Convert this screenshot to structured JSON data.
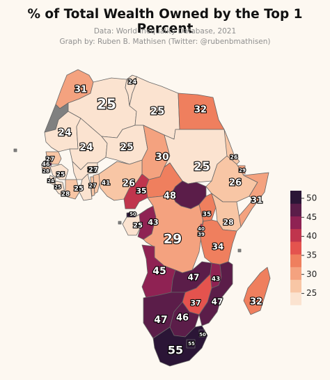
{
  "header": {
    "title": "% of Total Wealth Owned by the Top 1 Percent",
    "source": "Data: World Inequality Database, 2021",
    "credit": "Graph by: Ruben B. Mathisen (Twitter: @rubenbmathisen)"
  },
  "legend": {
    "ticks": [
      "50",
      "45",
      "40",
      "35",
      "30",
      "25"
    ],
    "range": [
      22,
      52
    ],
    "tick_values": [
      50,
      45,
      40,
      35,
      30,
      25
    ]
  },
  "colors": {
    "background": "#fdf8f1",
    "no_data": "#808080",
    "scale": [
      "#fbe3d0",
      "#f8c6a5",
      "#f4a27f",
      "#ef7f5e",
      "#e4534e",
      "#c0354d",
      "#8f2253",
      "#5b1d49",
      "#2b1536"
    ]
  },
  "regions": [
    {
      "name": "Morocco",
      "value": "31"
    },
    {
      "name": "Western Sahara",
      "value": ""
    },
    {
      "name": "Algeria",
      "value": "25"
    },
    {
      "name": "Tunisia",
      "value": "24"
    },
    {
      "name": "Libya",
      "value": "25"
    },
    {
      "name": "Egypt",
      "value": "32"
    },
    {
      "name": "Mauritania",
      "value": "24"
    },
    {
      "name": "Mali",
      "value": "24"
    },
    {
      "name": "Niger",
      "value": "25"
    },
    {
      "name": "Chad",
      "value": "30"
    },
    {
      "name": "Sudan",
      "value": "25"
    },
    {
      "name": "Senegal",
      "value": "27"
    },
    {
      "name": "Gambia",
      "value": "46"
    },
    {
      "name": "Guinea-Bissau",
      "value": "28"
    },
    {
      "name": "Guinea",
      "value": "25"
    },
    {
      "name": "Sierra Leone",
      "value": "24"
    },
    {
      "name": "Liberia",
      "value": "25"
    },
    {
      "name": "Cote d'Ivoire",
      "value": "28"
    },
    {
      "name": "Burkina Faso",
      "value": "25"
    },
    {
      "name": "Ghana",
      "value": "25"
    },
    {
      "name": "Togo",
      "value": "27"
    },
    {
      "name": "Benin",
      "value": "27"
    },
    {
      "name": "Nigeria",
      "value": "26"
    },
    {
      "name": "Cameroon",
      "value": "41"
    },
    {
      "name": "Central African Republic",
      "value": "35"
    },
    {
      "name": "South Sudan",
      "value": "48"
    },
    {
      "name": "Eritrea",
      "value": "26"
    },
    {
      "name": "Djibouti",
      "value": "29"
    },
    {
      "name": "Ethiopia",
      "value": "26"
    },
    {
      "name": "Somalia",
      "value": "31"
    },
    {
      "name": "Equatorial Guinea",
      "value": "50"
    },
    {
      "name": "Gabon",
      "value": "25"
    },
    {
      "name": "Congo",
      "value": "43"
    },
    {
      "name": "DR Congo",
      "value": "29"
    },
    {
      "name": "Uganda",
      "value": "35"
    },
    {
      "name": "Kenya",
      "value": "28"
    },
    {
      "name": "Rwanda",
      "value": "40"
    },
    {
      "name": "Burundi",
      "value": "39"
    },
    {
      "name": "Tanzania",
      "value": "34"
    },
    {
      "name": "Angola",
      "value": "45"
    },
    {
      "name": "Zambia",
      "value": "47"
    },
    {
      "name": "Malawi",
      "value": "43"
    },
    {
      "name": "Mozambique",
      "value": "47"
    },
    {
      "name": "Zimbabwe",
      "value": "37"
    },
    {
      "name": "Namibia",
      "value": "47"
    },
    {
      "name": "Botswana",
      "value": "46"
    },
    {
      "name": "South Africa",
      "value": "55"
    },
    {
      "name": "Eswatini",
      "value": "50"
    },
    {
      "name": "Lesotho",
      "value": "55"
    },
    {
      "name": "Madagascar",
      "value": "32"
    },
    {
      "name": "Cape Verde",
      "value": ""
    },
    {
      "name": "Sao Tome",
      "value": ""
    },
    {
      "name": "Comoros",
      "value": ""
    }
  ]
}
